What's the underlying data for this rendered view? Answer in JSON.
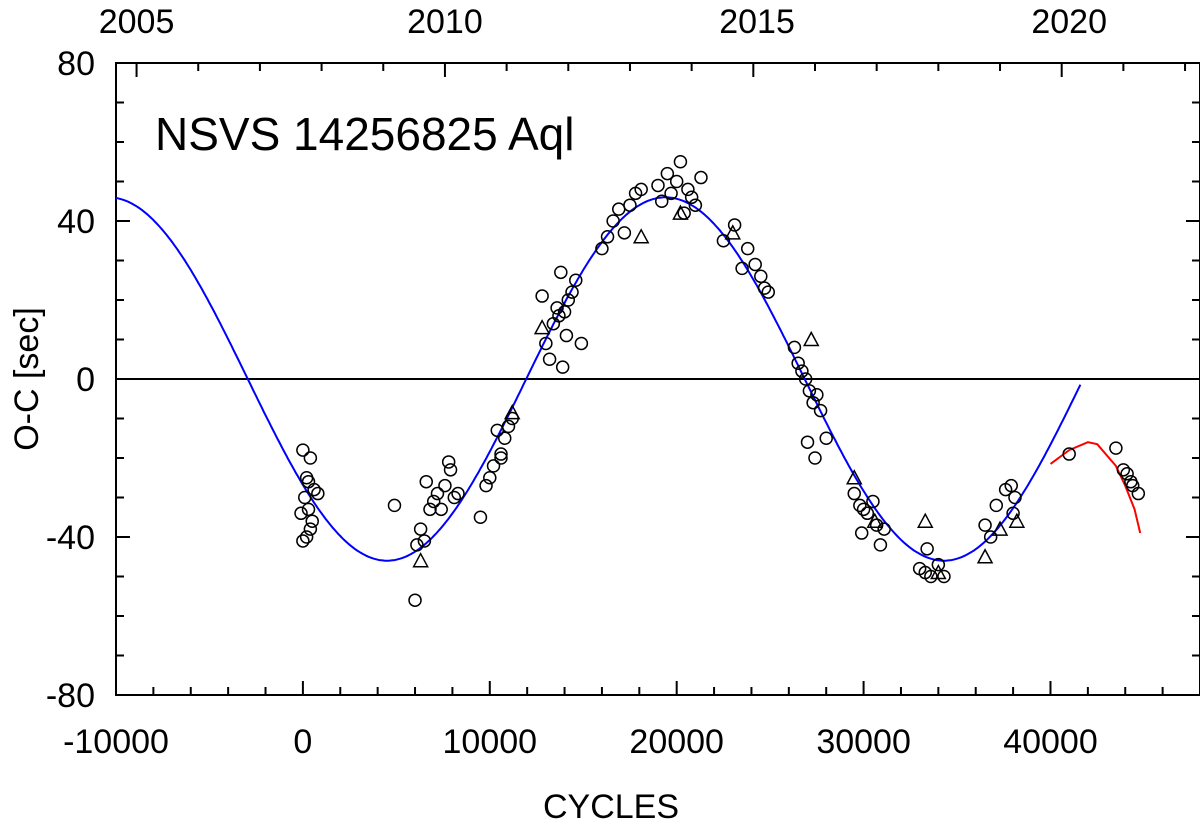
{
  "chart_data": {
    "type": "scatter",
    "title": "NSVS 14256825 Aql",
    "xlabel": "CYCLES",
    "ylabel": "O-C [sec]",
    "xlim": [
      -10000,
      48000
    ],
    "ylim": [
      -80,
      80
    ],
    "x_ticks": [
      -10000,
      0,
      10000,
      20000,
      30000,
      40000
    ],
    "x_tick_labels": [
      "-10000",
      "0",
      "10000",
      "20000",
      "30000",
      "40000"
    ],
    "y_ticks": [
      -80,
      -40,
      0,
      40,
      80
    ],
    "y_tick_labels": [
      "-80",
      "-40",
      "0",
      "40",
      "80"
    ],
    "top_axis": {
      "tick_labels": [
        "2005",
        "2010",
        "2015",
        "2020"
      ],
      "tick_cycles": [
        -8900,
        7600,
        24300,
        41000
      ]
    },
    "zero_line": 0,
    "series": [
      {
        "name": "fit-model",
        "style": "line",
        "color": "#0000ff",
        "x_range": [
          -10000,
          41600
        ],
        "amplitude": 46,
        "period": 29800,
        "peak_cycle": 19400
      },
      {
        "name": "recent-fit",
        "style": "line",
        "color": "#ff0000",
        "points": [
          [
            40000,
            -21.5
          ],
          [
            41000,
            -18
          ],
          [
            42000,
            -16
          ],
          [
            42500,
            -16.5
          ],
          [
            43500,
            -22
          ],
          [
            44000,
            -27
          ],
          [
            44500,
            -33
          ],
          [
            44800,
            -39
          ]
        ]
      },
      {
        "name": "circles",
        "style": "marker-circle",
        "points": [
          [
            0,
            -18
          ],
          [
            200,
            -25
          ],
          [
            400,
            -20
          ],
          [
            100,
            -30
          ],
          [
            300,
            -33
          ],
          [
            -100,
            -34
          ],
          [
            0,
            -41
          ],
          [
            200,
            -40
          ],
          [
            400,
            -38
          ],
          [
            600,
            -28
          ],
          [
            300,
            -26
          ],
          [
            500,
            -36
          ],
          [
            800,
            -29
          ],
          [
            4900,
            -32
          ],
          [
            6000,
            -56
          ],
          [
            6100,
            -42
          ],
          [
            6300,
            -38
          ],
          [
            6500,
            -41
          ],
          [
            6600,
            -26
          ],
          [
            6800,
            -33
          ],
          [
            7000,
            -31
          ],
          [
            7200,
            -29
          ],
          [
            7400,
            -33
          ],
          [
            7600,
            -27
          ],
          [
            7800,
            -21
          ],
          [
            7900,
            -23
          ],
          [
            8100,
            -30
          ],
          [
            8300,
            -29
          ],
          [
            9500,
            -35
          ],
          [
            9800,
            -27
          ],
          [
            10000,
            -25
          ],
          [
            10200,
            -22
          ],
          [
            10400,
            -13
          ],
          [
            10600,
            -19
          ],
          [
            10800,
            -15
          ],
          [
            11000,
            -12
          ],
          [
            11200,
            -10
          ],
          [
            10600,
            -20
          ],
          [
            12800,
            21
          ],
          [
            13000,
            9
          ],
          [
            13200,
            5
          ],
          [
            13400,
            14
          ],
          [
            13600,
            18
          ],
          [
            13800,
            27
          ],
          [
            13900,
            3
          ],
          [
            14000,
            17
          ],
          [
            14200,
            20
          ],
          [
            14400,
            22
          ],
          [
            14600,
            25
          ],
          [
            13700,
            16
          ],
          [
            14100,
            11
          ],
          [
            14900,
            9
          ],
          [
            16000,
            33
          ],
          [
            16300,
            36
          ],
          [
            16600,
            40
          ],
          [
            16900,
            43
          ],
          [
            17200,
            37
          ],
          [
            17500,
            44
          ],
          [
            17800,
            47
          ],
          [
            18100,
            48
          ],
          [
            19000,
            49
          ],
          [
            19200,
            45
          ],
          [
            19500,
            52
          ],
          [
            19700,
            47
          ],
          [
            20000,
            50
          ],
          [
            20200,
            55
          ],
          [
            20400,
            42
          ],
          [
            20600,
            48
          ],
          [
            20800,
            46
          ],
          [
            21000,
            44
          ],
          [
            21300,
            51
          ],
          [
            22500,
            35
          ],
          [
            23100,
            39
          ],
          [
            23500,
            28
          ],
          [
            23800,
            33
          ],
          [
            24200,
            29
          ],
          [
            24500,
            26
          ],
          [
            24700,
            23
          ],
          [
            24900,
            22
          ],
          [
            26300,
            8
          ],
          [
            26500,
            4
          ],
          [
            26700,
            2
          ],
          [
            26900,
            0
          ],
          [
            27100,
            -3
          ],
          [
            27300,
            -6
          ],
          [
            27500,
            -4
          ],
          [
            27700,
            -8
          ],
          [
            27000,
            -16
          ],
          [
            27400,
            -20
          ],
          [
            28000,
            -15
          ],
          [
            29500,
            -29
          ],
          [
            29800,
            -32
          ],
          [
            30000,
            -33
          ],
          [
            30200,
            -34
          ],
          [
            30500,
            -31
          ],
          [
            30700,
            -37
          ],
          [
            30900,
            -42
          ],
          [
            31100,
            -38
          ],
          [
            29900,
            -39
          ],
          [
            33000,
            -48
          ],
          [
            33300,
            -49
          ],
          [
            33600,
            -50
          ],
          [
            34000,
            -47
          ],
          [
            34300,
            -50
          ],
          [
            33400,
            -43
          ],
          [
            36500,
            -37
          ],
          [
            36800,
            -40
          ],
          [
            37100,
            -32
          ],
          [
            37600,
            -28
          ],
          [
            37900,
            -27
          ],
          [
            38100,
            -30
          ],
          [
            38000,
            -34
          ],
          [
            41000,
            -19
          ],
          [
            43500,
            -17.5
          ],
          [
            43900,
            -23
          ],
          [
            44100,
            -24
          ],
          [
            44300,
            -26
          ],
          [
            44400,
            -27
          ],
          [
            44700,
            -29
          ]
        ]
      },
      {
        "name": "triangles",
        "style": "marker-triangle",
        "points": [
          [
            6300,
            -46
          ],
          [
            11200,
            -8.5
          ],
          [
            12800,
            13
          ],
          [
            18100,
            36
          ],
          [
            23000,
            37
          ],
          [
            20200,
            42
          ],
          [
            27200,
            10
          ],
          [
            29500,
            -25
          ],
          [
            30600,
            -36
          ],
          [
            33300,
            -36
          ],
          [
            34000,
            -49
          ],
          [
            36500,
            -45
          ],
          [
            37300,
            -38
          ],
          [
            38200,
            -36
          ]
        ]
      }
    ]
  }
}
